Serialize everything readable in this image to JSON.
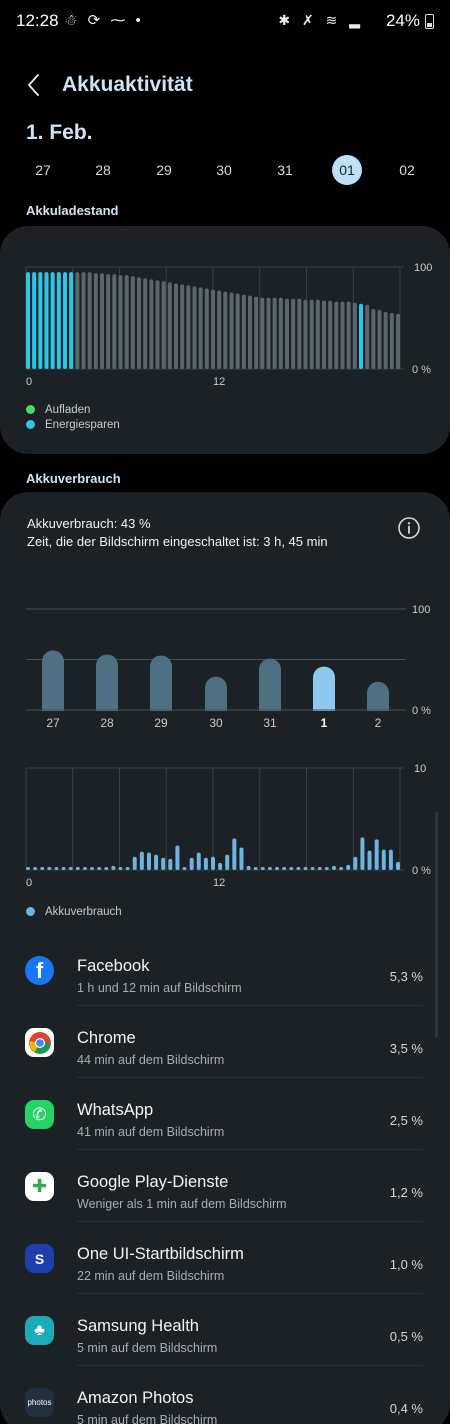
{
  "status_bar": {
    "time": "12:28",
    "left_icons": "☃ ⟳ ⁓ •",
    "right_icons": "✱ ✗ ≋ ▂",
    "battery": "24%"
  },
  "header": {
    "title": "Akkuaktivität"
  },
  "date_heading": "1. Feb.",
  "days": [
    "27",
    "28",
    "29",
    "30",
    "31",
    "01",
    "02"
  ],
  "selected_day_index": 5,
  "battery_level_section": {
    "label": "Akkuladestand",
    "axis_top": "100",
    "axis_bottom": "0 %",
    "x_ticks": [
      "0",
      "12"
    ],
    "legend": [
      {
        "label": "Aufladen",
        "color": "#4cd964"
      },
      {
        "label": "Energiesparen",
        "color": "#2ec6e6"
      }
    ]
  },
  "usage_section": {
    "label": "Akkuverbrauch",
    "summary": "Akkuverbrauch: 43 %",
    "screen_time": "Zeit, die der Bildschirm eingeschaltet ist: 3 h, 45 min",
    "daily_axis_top": "100",
    "daily_axis_bottom": "0 %",
    "hourly_axis_top": "10",
    "hourly_axis_bottom": "0 %",
    "hourly_x_ticks": [
      "0",
      "12"
    ],
    "legend_label": "Akkuverbrauch",
    "legend_color": "#6fb4e0"
  },
  "chart_data": [
    {
      "type": "bar",
      "title": "Akkuladestand",
      "ylim": [
        0,
        100
      ],
      "x_ticks": [
        "0",
        "12"
      ],
      "values": [
        95,
        95,
        95,
        95,
        95,
        95,
        95,
        95,
        95,
        95,
        95,
        94,
        94,
        93,
        93,
        92,
        92,
        91,
        90,
        89,
        88,
        87,
        86,
        85,
        84,
        83,
        82,
        81,
        80,
        79,
        78,
        77,
        76,
        75,
        74,
        73,
        72,
        71,
        70,
        70,
        70,
        70,
        69,
        69,
        69,
        68,
        68,
        68,
        67,
        67,
        66,
        66,
        66,
        65,
        64,
        63,
        59,
        58,
        56,
        55,
        54
      ],
      "series_type": [
        "energy",
        "energy",
        "energy",
        "energy",
        "energy",
        "energy",
        "energy",
        "energy",
        "normal",
        "normal",
        "normal",
        "normal",
        "normal",
        "normal",
        "normal",
        "normal",
        "normal",
        "normal",
        "normal",
        "normal",
        "normal",
        "normal",
        "normal",
        "normal",
        "normal",
        "normal",
        "normal",
        "normal",
        "normal",
        "normal",
        "normal",
        "normal",
        "normal",
        "normal",
        "normal",
        "normal",
        "normal",
        "normal",
        "normal",
        "normal",
        "normal",
        "normal",
        "normal",
        "normal",
        "normal",
        "normal",
        "normal",
        "normal",
        "normal",
        "normal",
        "normal",
        "normal",
        "normal",
        "normal",
        "energy",
        "normal",
        "normal",
        "normal",
        "normal",
        "normal",
        "normal"
      ],
      "legend": [
        "Aufladen",
        "Energiesparen"
      ]
    },
    {
      "type": "bar",
      "categories": [
        "27",
        "28",
        "29",
        "30",
        "31",
        "1",
        "2"
      ],
      "values": [
        59,
        55,
        54,
        33,
        51,
        43,
        28
      ],
      "ylim": [
        0,
        100
      ],
      "highlight_index": 5
    },
    {
      "type": "bar",
      "ylim": [
        0,
        10
      ],
      "x_ticks": [
        "0",
        "12"
      ],
      "legend": [
        "Akkuverbrauch"
      ],
      "values": [
        0.3,
        0.3,
        0.2,
        0.3,
        0.2,
        0.3,
        0.2,
        0.2,
        0.3,
        0.2,
        0.3,
        0.2,
        0.4,
        0.2,
        0.3,
        1.3,
        1.8,
        1.7,
        1.5,
        1.2,
        1.1,
        2.4,
        0.2,
        1.2,
        1.7,
        1.2,
        1.3,
        0.7,
        1.5,
        3.1,
        2.2,
        0.4,
        0.3,
        0.2,
        0.3,
        0.2,
        0.2,
        0.3,
        0.2,
        0.2,
        0.2,
        0.3,
        0.2,
        0.4,
        0.2,
        0.5,
        1.3,
        3.2,
        1.9,
        3.0,
        2.0,
        2.0,
        0.8
      ]
    }
  ],
  "apps": [
    {
      "name": "Facebook",
      "sub": "1 h und 12 min auf Bildschirm",
      "pct": "5,3 %",
      "icon": "facebook-icon"
    },
    {
      "name": "Chrome",
      "sub": "44 min auf dem Bildschirm",
      "pct": "3,5 %",
      "icon": "chrome-icon"
    },
    {
      "name": "WhatsApp",
      "sub": "41 min auf dem Bildschirm",
      "pct": "2,5 %",
      "icon": "whatsapp-icon"
    },
    {
      "name": "Google Play-Dienste",
      "sub": "Weniger als 1 min auf dem Bildschirm",
      "pct": "1,2 %",
      "icon": "google-play-services-icon"
    },
    {
      "name": "One UI-Startbildschirm",
      "sub": "22 min auf dem Bildschirm",
      "pct": "1,0 %",
      "icon": "one-ui-home-icon"
    },
    {
      "name": "Samsung Health",
      "sub": "5 min auf dem Bildschirm",
      "pct": "0,5 %",
      "icon": "samsung-health-icon"
    },
    {
      "name": "Amazon Photos",
      "sub": "5 min auf dem Bildschirm",
      "pct": "0,4 %",
      "icon": "amazon-photos-icon",
      "icon_text": "photos"
    }
  ]
}
